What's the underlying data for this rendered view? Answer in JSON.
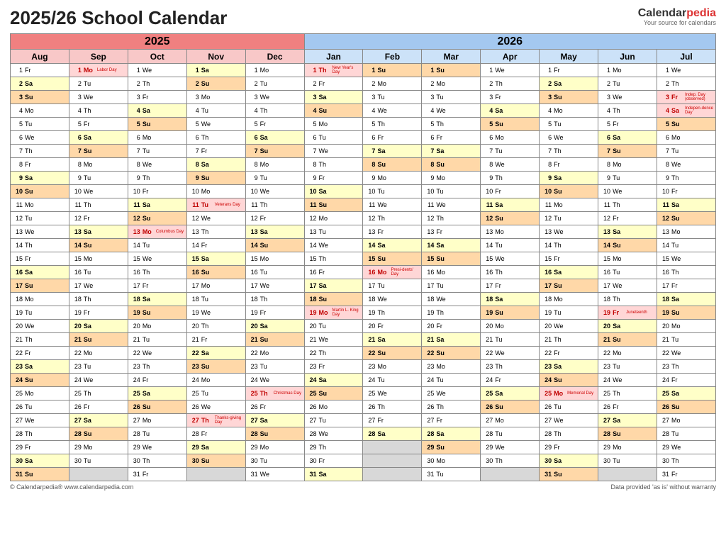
{
  "title": "2025/26 School Calendar",
  "brand": {
    "name1": "Calendar",
    "name2": "pedia",
    "tagline": "Your source for calendars"
  },
  "footer": {
    "left": "© Calendarpedia®   www.calendarpedia.com",
    "right": "Data provided 'as is' without warranty"
  },
  "colors": {
    "year2025_bg": "#f08080",
    "year2026_bg": "#a4c8f0",
    "month2025_bg": "#f8c8c8",
    "month2026_bg": "#cce2f8",
    "sat_bg": "#ffffc8",
    "sun_bg": "#ffd8a8",
    "holiday_bg": "#ffd6d6",
    "empty_bg": "#d8d8d8",
    "holiday_text": "#c00000"
  },
  "years": [
    {
      "label": "2025",
      "span": 5
    },
    {
      "label": "2026",
      "span": 7
    }
  ],
  "months": [
    {
      "label": "Aug",
      "year": 2025
    },
    {
      "label": "Sep",
      "year": 2025
    },
    {
      "label": "Oct",
      "year": 2025
    },
    {
      "label": "Nov",
      "year": 2025
    },
    {
      "label": "Dec",
      "year": 2025
    },
    {
      "label": "Jan",
      "year": 2026
    },
    {
      "label": "Feb",
      "year": 2026
    },
    {
      "label": "Mar",
      "year": 2026
    },
    {
      "label": "Apr",
      "year": 2026
    },
    {
      "label": "May",
      "year": 2026
    },
    {
      "label": "Jun",
      "year": 2026
    },
    {
      "label": "Jul",
      "year": 2026
    }
  ],
  "month_starts": [
    5,
    1,
    3,
    6,
    1,
    4,
    0,
    0,
    3,
    5,
    1,
    3
  ],
  "month_lengths": [
    31,
    30,
    31,
    30,
    31,
    31,
    28,
    31,
    30,
    31,
    30,
    31
  ],
  "dow_labels": [
    "Su",
    "Mo",
    "Tu",
    "We",
    "Th",
    "Fr",
    "Sa"
  ],
  "holidays": {
    "1-1": {
      "note": "Labor Day"
    },
    "2-13": {
      "note": "Columbus Day"
    },
    "3-11": {
      "note": "Veterans Day"
    },
    "3-27": {
      "note": "Thanks-giving Day"
    },
    "4-25": {
      "note": "Christmas Day"
    },
    "5-1": {
      "note": "New Year's Day"
    },
    "5-19": {
      "note": "Martin L. King Day"
    },
    "6-16": {
      "note": "Presi-dents' Day"
    },
    "9-25": {
      "note": "Memorial Day"
    },
    "10-19": {
      "note": "Juneteenth"
    },
    "11-3": {
      "note": "Indep. Day (observed)"
    },
    "11-4": {
      "note": "Indepen-dence Day"
    }
  }
}
